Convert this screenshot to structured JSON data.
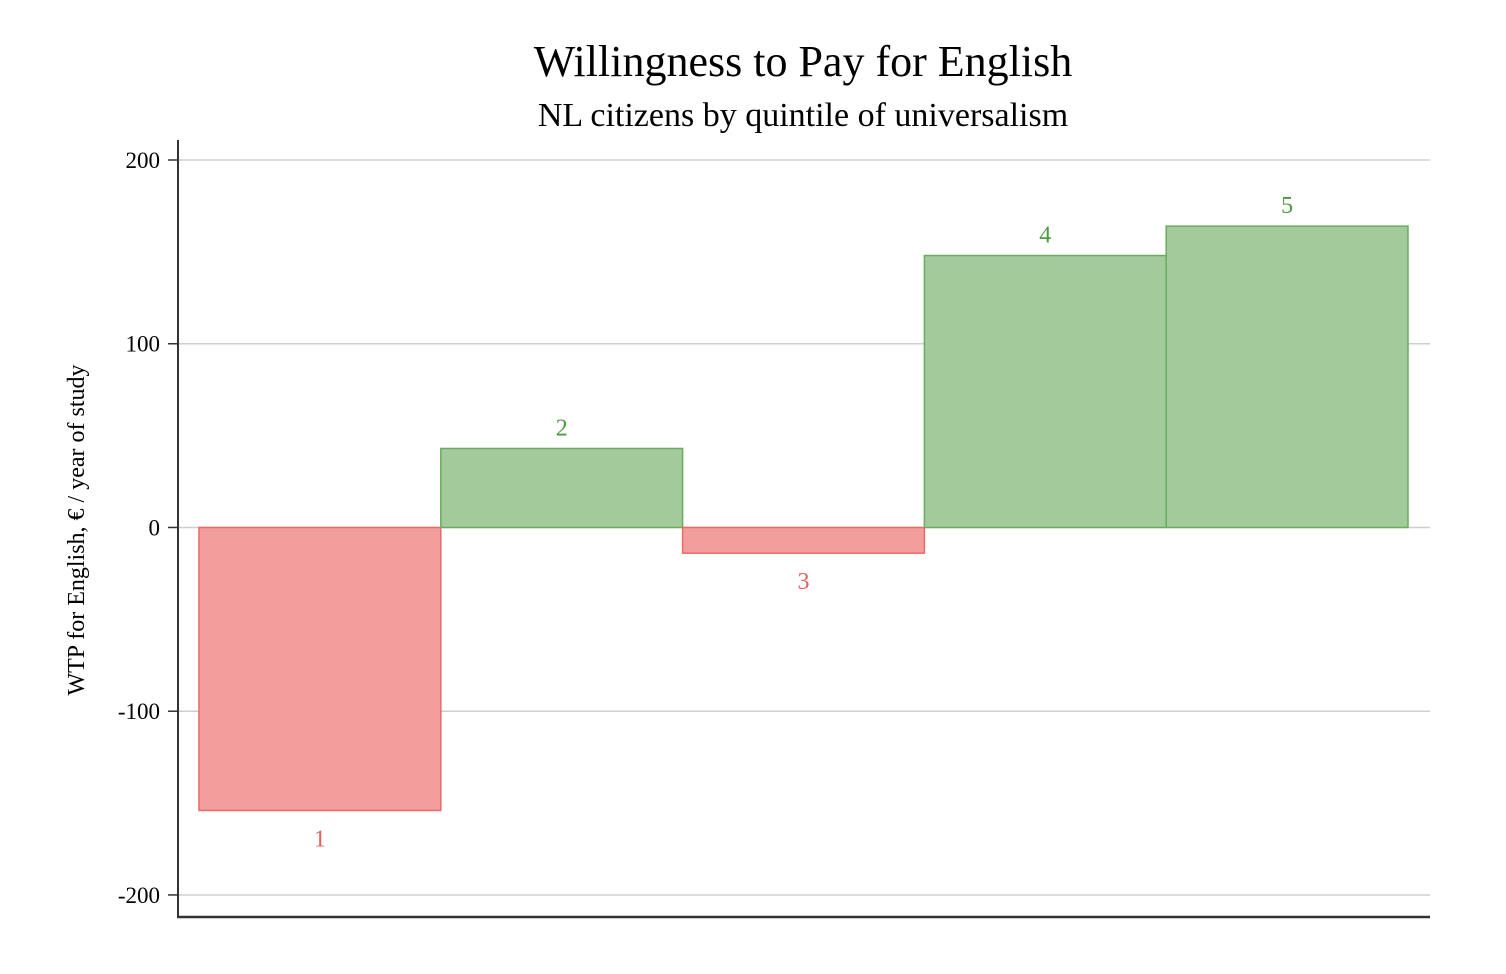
{
  "chart_data": {
    "type": "bar",
    "title": "Willingness to Pay for English",
    "subtitle": "NL citizens by quintile of universalism",
    "xlabel": "",
    "ylabel": "WTP for English, € / year of study",
    "ylim": [
      -212,
      200
    ],
    "yticks": [
      200,
      100,
      0,
      -100,
      -200
    ],
    "ytick_labels": [
      "200",
      "100",
      "0",
      "-100",
      "-200"
    ],
    "grid": true,
    "categories": [
      "1",
      "2",
      "3",
      "4",
      "5"
    ],
    "values": [
      -154,
      43,
      -14,
      148,
      164
    ],
    "colors": {
      "positive_fill": "#a3ca9b",
      "positive_edge": "#6aac5f",
      "positive_label": "#4f9a43",
      "negative_fill": "#f29e9c",
      "negative_edge": "#ea6a68",
      "negative_label": "#e4615f"
    }
  }
}
